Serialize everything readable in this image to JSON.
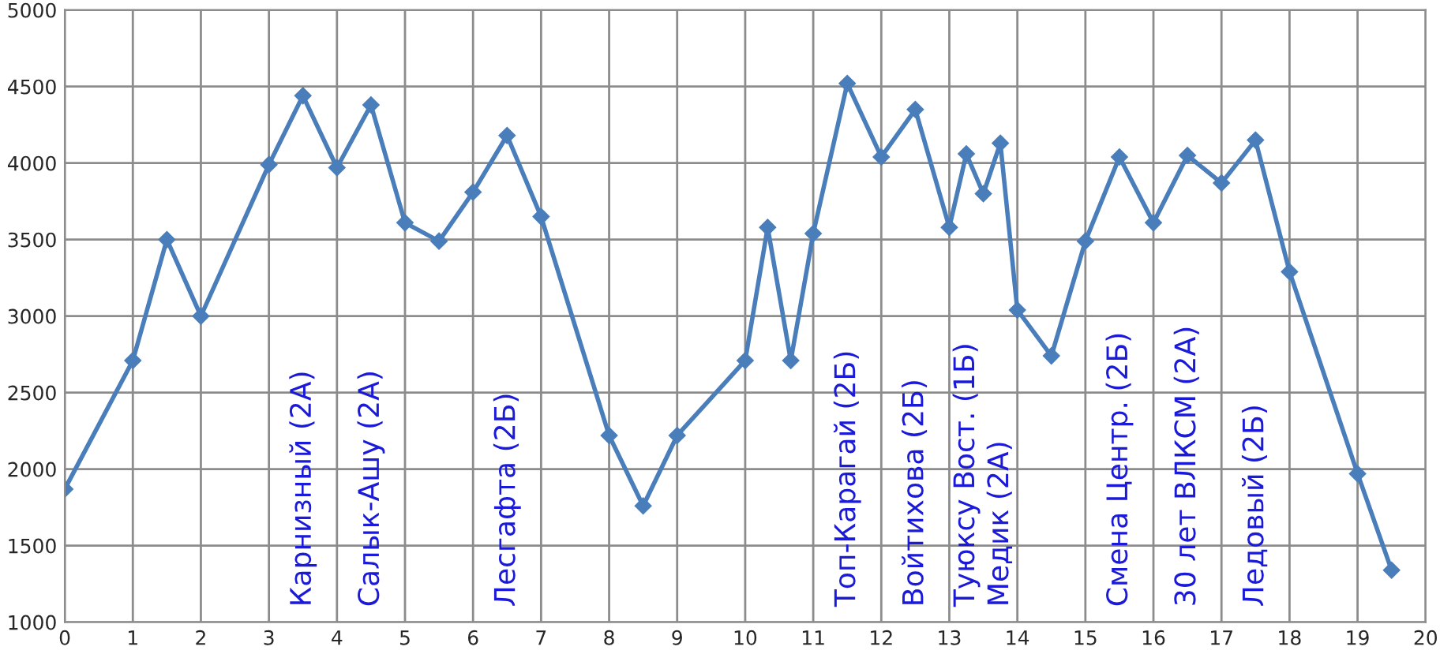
{
  "chart_data": {
    "type": "line",
    "x": [
      0,
      1,
      1.5,
      2,
      3,
      3.5,
      4,
      4.5,
      5,
      5.5,
      6,
      6.5,
      7,
      8,
      8.5,
      9,
      10,
      10.33,
      10.67,
      11,
      11.5,
      12,
      12.5,
      13,
      13.25,
      13.5,
      13.75,
      14,
      14.5,
      15,
      15.5,
      16,
      16.5,
      17,
      17.5,
      18,
      19,
      19.5
    ],
    "series": [
      {
        "color": "#4a7ebb",
        "values": [
          1870,
          2710,
          3500,
          3000,
          3990,
          4440,
          3970,
          4380,
          3610,
          3490,
          3810,
          4180,
          3650,
          2220,
          1760,
          2220,
          2710,
          3580,
          2710,
          3540,
          4520,
          4040,
          4350,
          3580,
          4060,
          3800,
          4130,
          3040,
          2740,
          3490,
          4040,
          3610,
          4050,
          3870,
          4150,
          3290,
          1970,
          1340
        ]
      }
    ],
    "xlim": [
      0,
      20
    ],
    "xticks": [
      0,
      1,
      2,
      3,
      4,
      5,
      6,
      7,
      8,
      9,
      10,
      11,
      12,
      13,
      14,
      15,
      16,
      17,
      18,
      19,
      20
    ],
    "ylim": [
      1000,
      5000
    ],
    "yticks": [
      1000,
      1500,
      2000,
      2500,
      3000,
      3500,
      4000,
      4500,
      5000
    ],
    "grid": true,
    "marker": "diamond",
    "line_style": "solid",
    "legend": false,
    "annotations": [
      "Карнизный (2А)",
      "Салык-Ашу (2А)",
      "Лесгафта (2Б)",
      "Топ-Карагай (2Б)",
      "Войтихова (2Б)",
      "Туюксу Вост. (1Б)",
      "Медик (2А)",
      "Смена Центр. (2Б)",
      "30 лет ВЛКСМ (2А)",
      "Ледовый (2Б)"
    ]
  }
}
